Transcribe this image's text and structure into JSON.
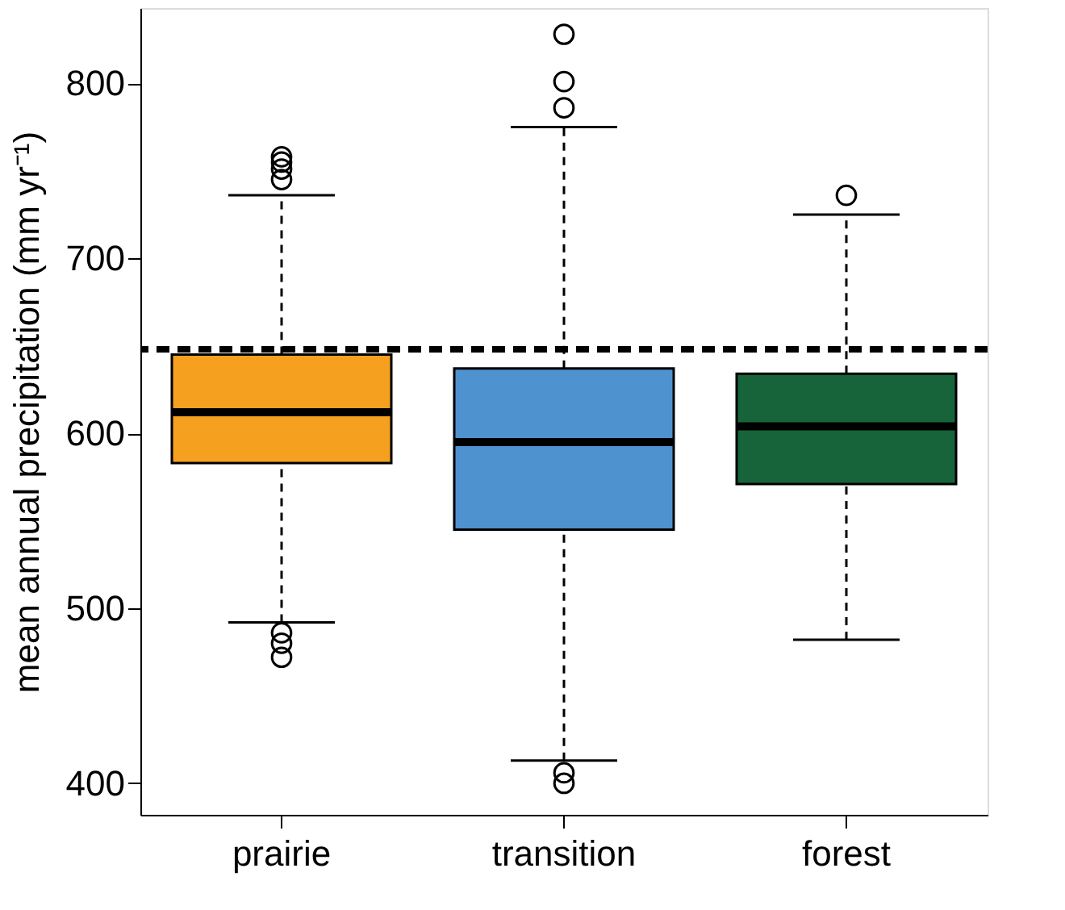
{
  "chart_data": {
    "type": "box",
    "ylabel": "mean annual precipitation (mm yr⁻¹)",
    "categories": [
      "prairie",
      "transition",
      "forest"
    ],
    "colors": [
      "#f6a01f",
      "#4f92d0",
      "#17643a"
    ],
    "boxes": [
      {
        "low": 492,
        "q1": 583,
        "median": 612,
        "q3": 645,
        "high": 736,
        "outliers": [
          758,
          755,
          751,
          745,
          486,
          480,
          472
        ]
      },
      {
        "low": 413,
        "q1": 545,
        "median": 595,
        "q3": 637,
        "high": 775,
        "outliers": [
          828,
          801,
          786,
          406,
          400
        ]
      },
      {
        "low": 482,
        "q1": 571,
        "median": 604,
        "q3": 634,
        "high": 725,
        "outliers": [
          736
        ]
      }
    ],
    "ylim": [
      382,
      843
    ],
    "yticks": [
      400,
      500,
      600,
      700,
      800
    ],
    "ref_lines": [
      {
        "axis": "y",
        "value": 648,
        "line_style": "dashed"
      }
    ],
    "grid": false
  }
}
